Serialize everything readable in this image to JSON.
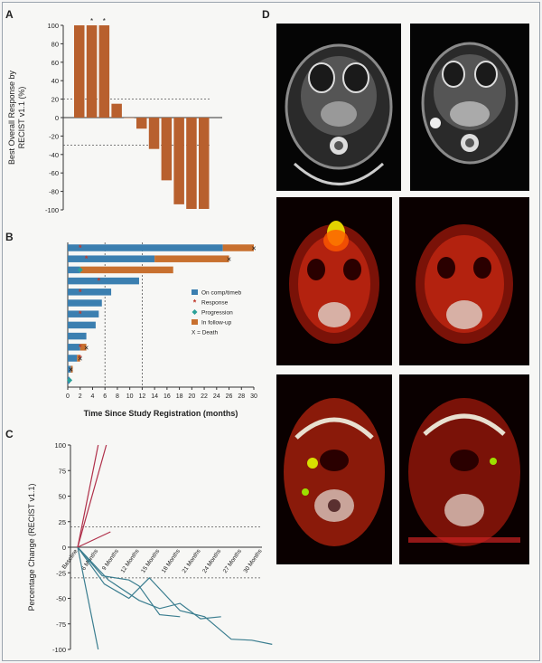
{
  "panels": {
    "a": "A",
    "b": "B",
    "c": "C",
    "d": "D"
  },
  "colors": {
    "bar": "#b8602e",
    "blue": "#3b7fb0",
    "orange": "#c8702f",
    "red_star": "#c0392b",
    "teal": "#2aa198",
    "spider_up": "#b0304a",
    "spider_down": "#3a7d8f"
  },
  "chart_data": [
    {
      "type": "bar",
      "ylabel_lines": [
        "Best Overall Response by",
        "RECIST v1.1 (%)"
      ],
      "values": [
        100,
        100,
        100,
        15,
        0,
        -12,
        -34,
        -68,
        -94,
        -99,
        -99
      ],
      "asterisks": [
        "",
        "*",
        "*",
        "",
        "",
        "",
        "",
        "",
        "",
        "",
        ""
      ],
      "ylim": [
        -100,
        100
      ],
      "yticks": [
        "100",
        "80",
        "60",
        "40",
        "20",
        "0",
        "-20",
        "-40",
        "-60",
        "-80",
        "-100"
      ],
      "reference_lines": [
        20,
        -30
      ]
    },
    {
      "type": "bar",
      "subtype": "swimmer",
      "xlabel": "Time Since Study Registration (months)",
      "xticks": [
        "0",
        "2",
        "4",
        "6",
        "8",
        "10",
        "12",
        "14",
        "16",
        "18",
        "20",
        "22",
        "24",
        "26",
        "28",
        "30"
      ],
      "xlim": [
        0,
        30
      ],
      "reference_lines": [
        6,
        12
      ],
      "legend": [
        {
          "label": "On comp/timeb",
          "kind": "blue"
        },
        {
          "label": "Response",
          "kind": "star"
        },
        {
          "label": "Progression",
          "kind": "diamond"
        },
        {
          "label": "In follow-up",
          "kind": "orange"
        },
        {
          "label": "X = Death",
          "kind": "text"
        }
      ],
      "bars": [
        {
          "on": 25,
          "follow": 5,
          "response": 2,
          "death": 30
        },
        {
          "on": 14,
          "follow": 12,
          "response": 3,
          "death": 26
        },
        {
          "on": 2,
          "follow": 15,
          "progression": 2
        },
        {
          "on": 11.5,
          "follow": 0,
          "response": 5
        },
        {
          "on": 7,
          "follow": 0,
          "response": 2
        },
        {
          "on": 5.5,
          "follow": 0
        },
        {
          "on": 5,
          "follow": 0,
          "response": 2
        },
        {
          "on": 4.5,
          "follow": 0
        },
        {
          "on": 3,
          "follow": 0
        },
        {
          "on": 2,
          "follow": 1,
          "response": 2,
          "death": 3
        },
        {
          "on": 1.5,
          "follow": 0.5,
          "response": 2,
          "death": 2
        },
        {
          "on": 0.5,
          "follow": 0.3,
          "death": 0.5
        },
        {
          "on": 0.3,
          "follow": 0,
          "progression": 0.3
        }
      ]
    },
    {
      "type": "line",
      "ylabel": "Percentage Change (RECIST v1.1)",
      "xticks": [
        "Baseline",
        "6 Months",
        "9 Months",
        "12 Months",
        "15 Months",
        "18 Months",
        "21 Months",
        "24 Months",
        "27 Months",
        "30 Months"
      ],
      "yticks": [
        "100",
        "75",
        "50",
        "25",
        "0",
        "-25",
        "-50",
        "-75",
        "-100"
      ],
      "ylim": [
        -100,
        100
      ],
      "reference_lines": [
        20,
        -30
      ],
      "series_up": [
        {
          "points": [
            [
              0,
              0
            ],
            [
              1,
              100
            ]
          ]
        },
        {
          "points": [
            [
              0,
              0
            ],
            [
              1.4,
              100
            ]
          ]
        },
        {
          "points": [
            [
              0,
              0
            ],
            [
              1.6,
              15
            ]
          ]
        }
      ],
      "series_down": [
        {
          "points": [
            [
              0,
              0
            ],
            [
              1,
              -100
            ]
          ]
        },
        {
          "points": [
            [
              0,
              0
            ],
            [
              1.3,
              -36
            ],
            [
              2.5,
              -50
            ],
            [
              3.5,
              -30
            ],
            [
              5,
              -62
            ],
            [
              6.2,
              -68
            ],
            [
              7.5,
              -90
            ],
            [
              8.5,
              -91
            ],
            [
              9.5,
              -95
            ]
          ]
        },
        {
          "points": [
            [
              0,
              0
            ],
            [
              1.5,
              -32
            ],
            [
              3,
              -52
            ],
            [
              4,
              -60
            ],
            [
              5,
              -55
            ],
            [
              6,
              -70
            ],
            [
              7,
              -68
            ]
          ]
        },
        {
          "points": [
            [
              0,
              0
            ],
            [
              1.2,
              -28
            ],
            [
              2.5,
              -32
            ],
            [
              3,
              -38
            ],
            [
              4,
              -66
            ],
            [
              5,
              -68
            ]
          ]
        }
      ]
    }
  ]
}
